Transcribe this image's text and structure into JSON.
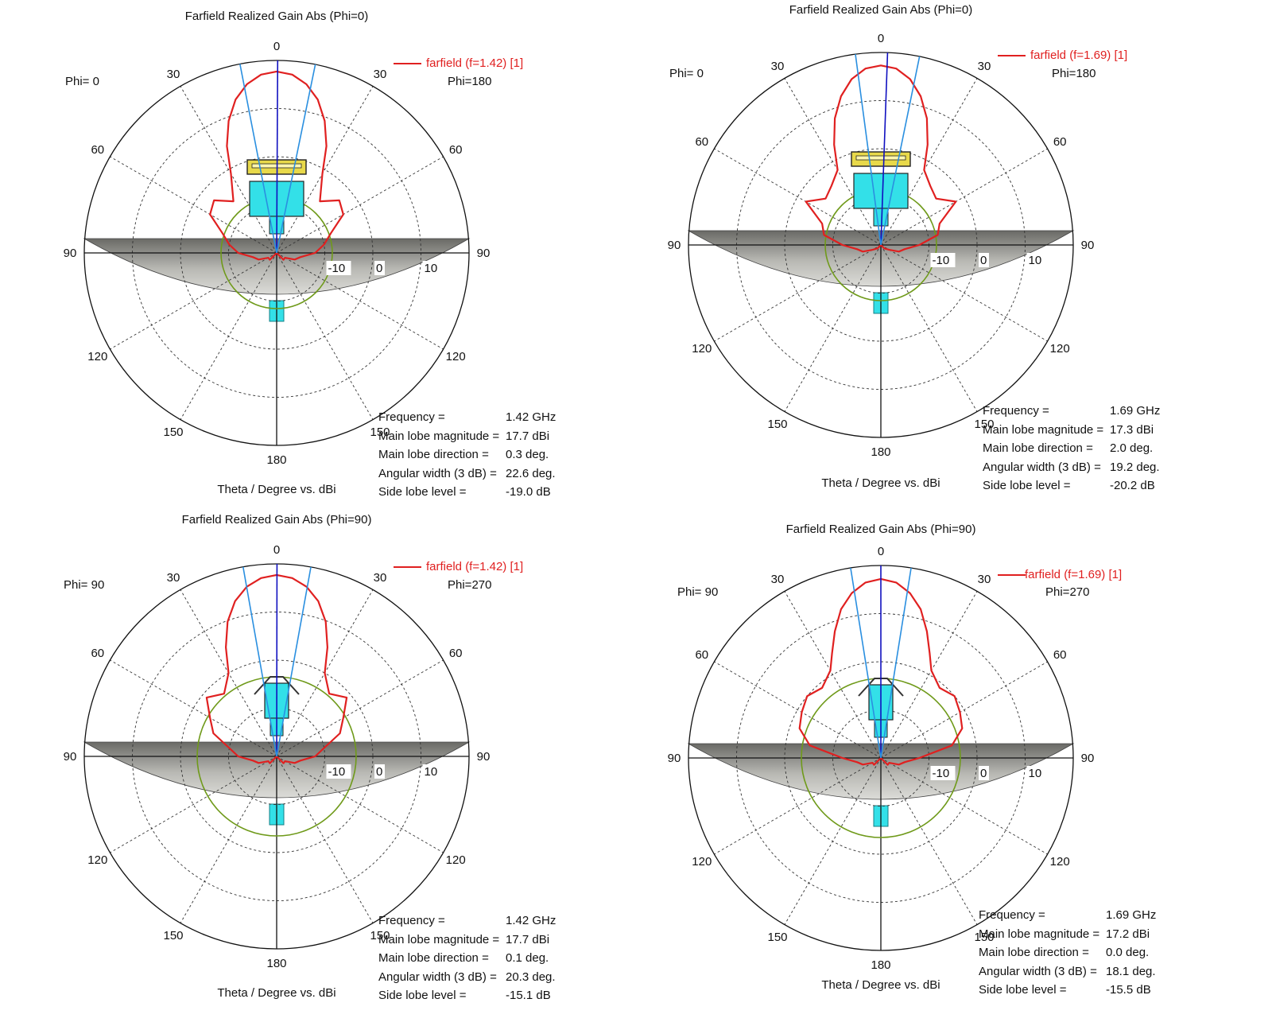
{
  "panels": [
    {
      "title": "Farfield Realized Gain Abs (Phi=0)",
      "legend": "farfield (f=1.42) [1]",
      "phi_left": "Phi=  0",
      "phi_right": "Phi=180",
      "theta_label": "Theta / Degree vs. dBi",
      "stats": [
        {
          "key": "Frequency =",
          "value": "1.42 GHz"
        },
        {
          "key": "Main lobe magnitude =",
          "value": "17.7 dBi"
        },
        {
          "key": "Main lobe direction =",
          "value": "0.3 deg."
        },
        {
          "key": "Angular width (3 dB) =",
          "value": "22.6 deg."
        },
        {
          "key": "Side lobe level =",
          "value": "-19.0 dB"
        }
      ]
    },
    {
      "title": "Farfield Realized Gain Abs (Phi=0)",
      "legend": "farfield (f=1.69) [1]",
      "phi_left": "Phi=  0",
      "phi_right": "Phi=180",
      "theta_label": "Theta / Degree vs. dBi",
      "stats": [
        {
          "key": "Frequency =",
          "value": "1.69 GHz"
        },
        {
          "key": "Main lobe magnitude =",
          "value": "17.3 dBi"
        },
        {
          "key": "Main lobe direction =",
          "value": "2.0 deg."
        },
        {
          "key": "Angular width (3 dB) =",
          "value": "19.2 deg."
        },
        {
          "key": "Side lobe level =",
          "value": "-20.2 dB"
        }
      ]
    },
    {
      "title": "Farfield Realized Gain Abs (Phi=90)",
      "legend": "farfield (f=1.42) [1]",
      "phi_left": "Phi= 90",
      "phi_right": "Phi=270",
      "theta_label": "Theta / Degree vs. dBi",
      "stats": [
        {
          "key": "Frequency =",
          "value": "1.42 GHz"
        },
        {
          "key": "Main lobe magnitude =",
          "value": "17.7 dBi"
        },
        {
          "key": "Main lobe direction =",
          "value": "0.1 deg."
        },
        {
          "key": "Angular width (3 dB) =",
          "value": "20.3 deg."
        },
        {
          "key": "Side lobe level =",
          "value": "-15.1 dB"
        }
      ]
    },
    {
      "title": "Farfield Realized Gain Abs (Phi=90)",
      "legend": "farfield (f=1.69) [1]",
      "phi_left": "Phi= 90",
      "phi_right": "Phi=270",
      "theta_label": "Theta / Degree vs. dBi",
      "stats": [
        {
          "key": "Frequency =",
          "value": "1.69 GHz"
        },
        {
          "key": "Main lobe magnitude =",
          "value": "17.2 dBi"
        },
        {
          "key": "Main lobe direction =",
          "value": "0.0 deg."
        },
        {
          "key": "Angular width (3 dB) =",
          "value": "18.1 deg."
        },
        {
          "key": "Side lobe level =",
          "value": "-15.5 dB"
        }
      ]
    }
  ],
  "chart_data": [
    {
      "type": "polar",
      "title": "Farfield Realized Gain Abs (Phi=0)",
      "xlabel": "Theta / Degree vs. dBi",
      "angle_ticks": [
        "0",
        "30",
        "60",
        "90",
        "120",
        "150",
        "180",
        "150",
        "120",
        "90",
        "60",
        "30"
      ],
      "radial_ticks": [
        "-10",
        "0",
        "10"
      ],
      "series": [
        {
          "name": "farfield (f=1.42) [1]",
          "theta_deg": [
            0,
            5,
            10,
            15,
            20,
            25,
            30,
            40,
            50,
            60,
            70,
            80,
            90,
            100,
            110,
            120,
            135,
            150,
            165,
            180
          ],
          "gain_dbi": [
            17.7,
            17.2,
            15.6,
            13.0,
            9.2,
            4.5,
            -1.0,
            -6,
            -3,
            -4,
            -8,
            -10,
            -12,
            -15,
            -16,
            -18,
            -18,
            -20,
            -20,
            -20
          ]
        }
      ],
      "main_lobe_magnitude_dbi": 17.7,
      "main_lobe_direction_deg": 0.3,
      "angular_width_3db_deg": 22.6,
      "side_lobe_level_db": -19.0,
      "colors": {
        "pattern": "#e02020",
        "main_lobe": "#1010c0",
        "beamwidth": "#2a8fe0",
        "ref_circle": "#6f9a1a"
      }
    },
    {
      "type": "polar",
      "title": "Farfield Realized Gain Abs (Phi=0)",
      "xlabel": "Theta / Degree vs. dBi",
      "angle_ticks": [
        "0",
        "30",
        "60",
        "90",
        "120",
        "150",
        "180",
        "150",
        "120",
        "90",
        "60",
        "30"
      ],
      "radial_ticks": [
        "-10",
        "0",
        "10"
      ],
      "series": [
        {
          "name": "farfield (f=1.69) [1]",
          "theta_deg": [
            0,
            5,
            10,
            15,
            20,
            25,
            30,
            40,
            50,
            60,
            70,
            80,
            90,
            100,
            110,
            120,
            135,
            150,
            165,
            180
          ],
          "gain_dbi": [
            17.3,
            16.8,
            15.0,
            12.0,
            8.0,
            3.0,
            -2,
            -4,
            -5,
            -2,
            -7,
            -8,
            -12,
            -15,
            -16,
            -18,
            -19,
            -20,
            -20,
            -20
          ]
        }
      ],
      "main_lobe_magnitude_dbi": 17.3,
      "main_lobe_direction_deg": 2.0,
      "angular_width_3db_deg": 19.2,
      "side_lobe_level_db": -20.2,
      "colors": {
        "pattern": "#e02020",
        "main_lobe": "#1010c0",
        "beamwidth": "#2a8fe0",
        "ref_circle": "#6f9a1a"
      }
    },
    {
      "type": "polar",
      "title": "Farfield Realized Gain Abs (Phi=90)",
      "xlabel": "Theta / Degree vs. dBi",
      "angle_ticks": [
        "0",
        "30",
        "60",
        "90",
        "120",
        "150",
        "180",
        "150",
        "120",
        "90",
        "60",
        "30"
      ],
      "radial_ticks": [
        "-10",
        "0",
        "10"
      ],
      "series": [
        {
          "name": "farfield (f=1.42) [1]",
          "theta_deg": [
            0,
            5,
            10,
            15,
            20,
            25,
            30,
            40,
            50,
            60,
            70,
            80,
            90,
            100,
            110,
            120,
            135,
            150,
            165,
            180
          ],
          "gain_dbi": [
            17.7,
            17.2,
            15.8,
            13.4,
            9.8,
            5.0,
            0,
            -3,
            -1,
            -4,
            -6,
            -10,
            -12,
            -15,
            -16,
            -18,
            -18,
            -20,
            -20,
            -20
          ]
        }
      ],
      "main_lobe_magnitude_dbi": 17.7,
      "main_lobe_direction_deg": 0.1,
      "angular_width_3db_deg": 20.3,
      "side_lobe_level_db": -15.1,
      "colors": {
        "pattern": "#e02020",
        "main_lobe": "#1010c0",
        "beamwidth": "#2a8fe0",
        "ref_circle": "#6f9a1a"
      }
    },
    {
      "type": "polar",
      "title": "Farfield Realized Gain Abs (Phi=90)",
      "xlabel": "Theta / Degree vs. dBi",
      "angle_ticks": [
        "0",
        "30",
        "60",
        "90",
        "120",
        "150",
        "180",
        "150",
        "120",
        "90",
        "60",
        "30"
      ],
      "radial_ticks": [
        "-10",
        "0",
        "10"
      ],
      "series": [
        {
          "name": "farfield (f=1.69) [1]",
          "theta_deg": [
            0,
            5,
            10,
            15,
            20,
            25,
            30,
            40,
            50,
            60,
            70,
            80,
            90,
            100,
            110,
            120,
            135,
            150,
            165,
            180
          ],
          "gain_dbi": [
            17.2,
            16.6,
            14.8,
            12.0,
            8.0,
            4.0,
            1,
            -1,
            0,
            -1,
            -2,
            -5,
            -12,
            -15,
            -16,
            -18,
            -18,
            -20,
            -20,
            -20
          ]
        }
      ],
      "main_lobe_magnitude_dbi": 17.2,
      "main_lobe_direction_deg": 0.0,
      "angular_width_3db_deg": 18.1,
      "side_lobe_level_db": -15.5,
      "colors": {
        "pattern": "#e02020",
        "main_lobe": "#1010c0",
        "beamwidth": "#2a8fe0",
        "ref_circle": "#6f9a1a"
      }
    }
  ]
}
